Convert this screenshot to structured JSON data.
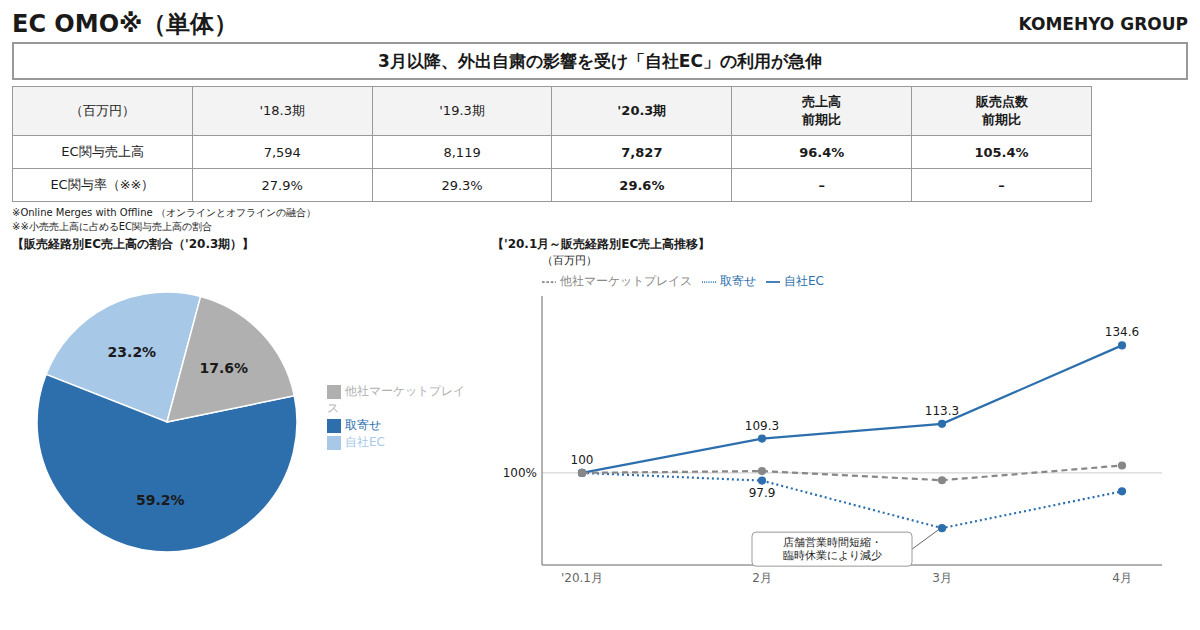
{
  "title": "EC OMO※（単体）",
  "subtitle": "KOMEHYO GROUP",
  "annotations": [
    "3月以降、外出自粛の影響を受け「自社EC」の利用が急伸",
    "※Online Merges with Offline （オンラインとオフラインの融合）",
    "※※小売売上高に占めるEC関与売上高の割合"
  ],
  "chart_data": [
    {
      "type": "table",
      "columns": [
        "（百万円）",
        "'18.3期",
        "'19.3期",
        "'20.3期",
        "売上高\n前期比",
        "販売点数\n前期比"
      ],
      "rows": [
        [
          "EC関与売上高",
          "7,594",
          "8,119",
          "7,827",
          "96.4%",
          "105.4%"
        ],
        [
          "EC関与率（※※）",
          "27.9%",
          "29.3%",
          "29.6%",
          "–",
          "–"
        ]
      ]
    },
    {
      "type": "pie",
      "title": "【販売経路別EC売上高の割合（'20.3期）】",
      "categories": [
        "自社EC",
        "取寄せ",
        "他社マーケットプレイス"
      ],
      "values": [
        23.2,
        59.2,
        17.6
      ],
      "value_labels": [
        "23.2%",
        "59.2%",
        "17.6%"
      ],
      "colors": [
        "#a8c8e8",
        "#2d6fad",
        "#b0b0b0"
      ],
      "data_labels": true,
      "legend": "right"
    },
    {
      "type": "line",
      "title": "【'20.1月～販売経路別EC売上高推移】",
      "ylabel": "（百万円）",
      "categories": [
        "'20.1月",
        "2月",
        "3月",
        "4月"
      ],
      "series": [
        {
          "name": "自社EC",
          "color": "#2d6fad",
          "line_style": "solid",
          "marker": "circle",
          "data_labels": true,
          "values": [
            100,
            109.3,
            113.3,
            134.6
          ]
        },
        {
          "name": "取寄せ",
          "color": "#2d6fad",
          "line_style": "dotted",
          "marker": "circle",
          "data_labels": true,
          "values": [
            100,
            97.9,
            85.0,
            95.0
          ],
          "value_labels": [
            null,
            "97.9",
            null,
            null
          ]
        },
        {
          "name": "他社マーケットプレイス",
          "color": "#888888",
          "line_style": "dashed",
          "marker": "circle",
          "values": [
            100,
            100.5,
            98.0,
            102.0
          ]
        }
      ],
      "ylim": [
        75,
        148
      ],
      "tick_labels": "x",
      "legend": "upper left",
      "annotations": [
        {
          "text": "100%",
          "y": 100
        },
        {
          "text": "店舗営業時間短縮・\n臨時休業により減少",
          "x": "3月",
          "y": 85
        }
      ]
    }
  ]
}
